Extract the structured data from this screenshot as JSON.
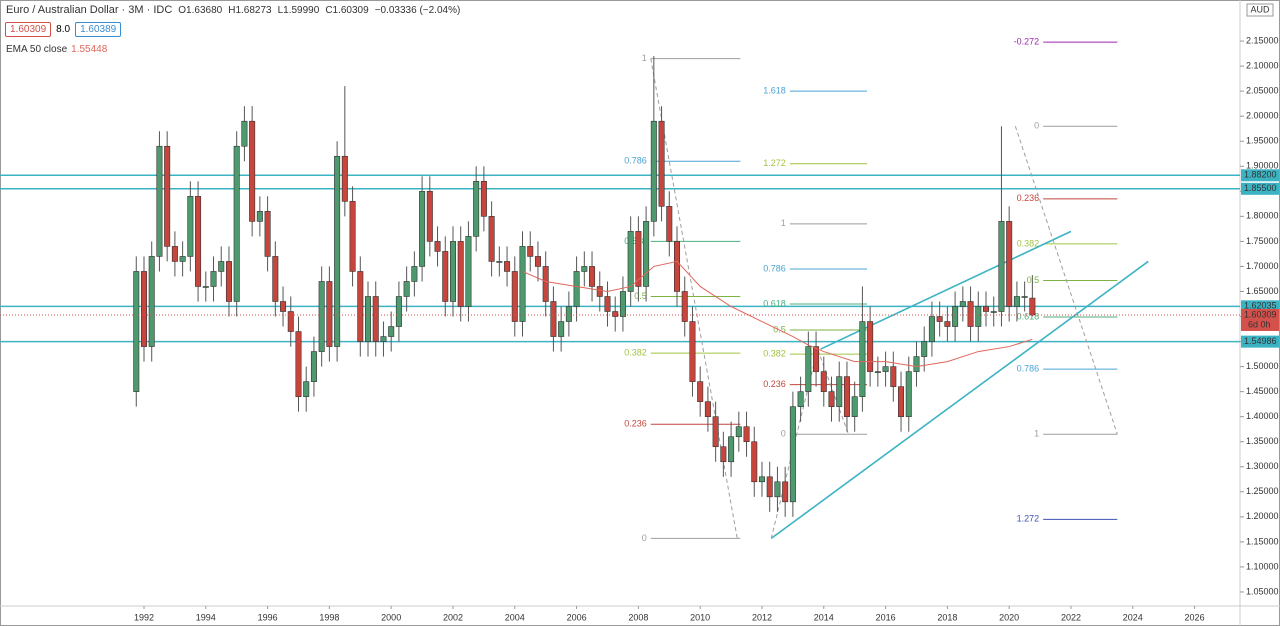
{
  "chart_data": {
    "type": "candlestick",
    "title": "Euro / Australian Dollar · 3M · IDC",
    "ohlc_text": [
      "O1.63680",
      "H1.68273",
      "L1.59990",
      "C1.60309",
      "−0.03336 (−2.04%)"
    ],
    "badges": [
      "1.60309",
      "8.0",
      "1.60389"
    ],
    "indicator": {
      "name": "EMA 50 close",
      "value_label": "1.55448",
      "color": "#e0665a",
      "x": [
        2004.25,
        2005,
        2006,
        2007,
        2007.75,
        2008.5,
        2009.25,
        2010,
        2011,
        2012,
        2013,
        2013.5,
        2014,
        2015,
        2016,
        2017,
        2018,
        2019,
        2020,
        2020.75
      ],
      "values": [
        1.69,
        1.67,
        1.66,
        1.65,
        1.66,
        1.7,
        1.71,
        1.66,
        1.62,
        1.59,
        1.56,
        1.543,
        1.53,
        1.51,
        1.51,
        1.5,
        1.51,
        1.53,
        1.54,
        1.55448
      ]
    },
    "currency": "AUD",
    "up_color": "#4e9a6e",
    "down_color": "#c6463d",
    "xlim": [
      1987.34,
      2027.47
    ],
    "ylim": [
      1.022,
      2.232
    ],
    "xticks": [
      1992,
      1994,
      1996,
      1998,
      2000,
      2002,
      2004,
      2006,
      2008,
      2010,
      2012,
      2014,
      2016,
      2018,
      2020,
      2022,
      2024,
      2026
    ],
    "yticks": [
      {
        "value": 1.05,
        "label": "1.05000"
      },
      {
        "value": 1.1,
        "label": "1.10000"
      },
      {
        "value": 1.15,
        "label": "1.15000"
      },
      {
        "value": 1.2,
        "label": "1.20000"
      },
      {
        "value": 1.25,
        "label": "1.25000"
      },
      {
        "value": 1.3,
        "label": "1.30000"
      },
      {
        "value": 1.35,
        "label": "1.35000"
      },
      {
        "value": 1.4,
        "label": "1.40000"
      },
      {
        "value": 1.45,
        "label": "1.45000"
      },
      {
        "value": 1.5,
        "label": "1.50000"
      },
      {
        "value": 1.55,
        "label": "1.55000"
      },
      {
        "value": 1.6,
        "label": "1.60000"
      },
      {
        "value": 1.65,
        "label": "1.65000"
      },
      {
        "value": 1.7,
        "label": "1.70000"
      },
      {
        "value": 1.75,
        "label": "1.75000"
      },
      {
        "value": 1.8,
        "label": "1.80000"
      },
      {
        "value": 1.85,
        "label": "1.85000"
      },
      {
        "value": 1.9,
        "label": "1.90000"
      },
      {
        "value": 1.95,
        "label": "1.95000"
      },
      {
        "value": 2.0,
        "label": "2.00000"
      },
      {
        "value": 2.05,
        "label": "2.05000"
      },
      {
        "value": 2.1,
        "label": "2.10000"
      },
      {
        "value": 2.15,
        "label": "2.15000"
      }
    ],
    "x": [
      1991.75,
      1992,
      1992.25,
      1992.5,
      1992.75,
      1993,
      1993.25,
      1993.5,
      1993.75,
      1994,
      1994.25,
      1994.5,
      1994.75,
      1995,
      1995.25,
      1995.5,
      1995.75,
      1996,
      1996.25,
      1996.5,
      1996.75,
      1997,
      1997.25,
      1997.5,
      1997.75,
      1998,
      1998.25,
      1998.5,
      1998.75,
      1999,
      1999.25,
      1999.5,
      1999.75,
      2000,
      2000.25,
      2000.5,
      2000.75,
      2001,
      2001.25,
      2001.5,
      2001.75,
      2002,
      2002.25,
      2002.5,
      2002.75,
      2003,
      2003.25,
      2003.5,
      2003.75,
      2004,
      2004.25,
      2004.5,
      2004.75,
      2005,
      2005.25,
      2005.5,
      2005.75,
      2006,
      2006.25,
      2006.5,
      2006.75,
      2007,
      2007.25,
      2007.5,
      2007.75,
      2008,
      2008.25,
      2008.5,
      2008.75,
      2009,
      2009.25,
      2009.5,
      2009.75,
      2010,
      2010.25,
      2010.5,
      2010.75,
      2011,
      2011.25,
      2011.5,
      2011.75,
      2012,
      2012.25,
      2012.5,
      2012.75,
      2013,
      2013.25,
      2013.5,
      2013.75,
      2014,
      2014.25,
      2014.5,
      2014.75,
      2015,
      2015.25,
      2015.5,
      2015.75,
      2016,
      2016.25,
      2016.5,
      2016.75,
      2017,
      2017.25,
      2017.5,
      2017.75,
      2018,
      2018.25,
      2018.5,
      2018.75,
      2019,
      2019.25,
      2019.5,
      2019.75,
      2020,
      2020.25,
      2020.5,
      2020.75
    ],
    "series": [
      {
        "open": [
          1.45,
          1.69,
          1.54,
          1.72,
          1.94,
          1.74,
          1.71,
          1.72,
          1.84,
          1.66,
          1.66,
          1.69,
          1.71,
          1.63,
          1.94,
          1.99,
          1.79,
          1.81,
          1.72,
          1.63,
          1.61,
          1.57,
          1.44,
          1.47,
          1.53,
          1.67,
          1.54,
          1.92,
          1.83,
          1.69,
          1.55,
          1.64,
          1.55,
          1.56,
          1.58,
          1.64,
          1.67,
          1.7,
          1.85,
          1.75,
          1.73,
          1.63,
          1.75,
          1.62,
          1.76,
          1.87,
          1.8,
          1.71,
          1.71,
          1.69,
          1.59,
          1.74,
          1.72,
          1.7,
          1.63,
          1.56,
          1.59,
          1.62,
          1.69,
          1.7,
          1.66,
          1.64,
          1.61,
          1.6,
          1.65,
          1.77,
          1.66,
          1.79,
          1.99,
          1.82,
          1.75,
          1.65,
          1.59,
          1.47,
          1.43,
          1.4,
          1.34,
          1.31,
          1.36,
          1.38,
          1.35,
          1.27,
          1.28,
          1.24,
          1.27,
          1.23,
          1.42,
          1.45,
          1.54,
          1.49,
          1.45,
          1.42,
          1.48,
          1.4,
          1.44,
          1.59,
          1.49,
          1.49,
          1.5,
          1.46,
          1.4,
          1.49,
          1.52,
          1.55,
          1.6,
          1.59,
          1.58,
          1.62,
          1.63,
          1.58,
          1.62,
          1.61,
          1.61,
          1.79,
          1.62,
          1.64,
          1.6368
        ],
        "high": [
          1.72,
          1.72,
          1.75,
          1.97,
          1.97,
          1.77,
          1.75,
          1.87,
          1.87,
          1.69,
          1.72,
          1.74,
          1.74,
          1.97,
          2.02,
          2.02,
          1.84,
          1.84,
          1.75,
          1.66,
          1.64,
          1.6,
          1.5,
          1.56,
          1.7,
          1.7,
          1.95,
          2.06,
          1.86,
          1.72,
          1.67,
          1.67,
          1.59,
          1.61,
          1.67,
          1.7,
          1.73,
          1.88,
          1.88,
          1.78,
          1.76,
          1.78,
          1.78,
          1.79,
          1.9,
          1.9,
          1.83,
          1.74,
          1.74,
          1.72,
          1.77,
          1.77,
          1.75,
          1.73,
          1.66,
          1.62,
          1.65,
          1.72,
          1.73,
          1.73,
          1.69,
          1.67,
          1.64,
          1.68,
          1.8,
          1.8,
          1.82,
          2.12,
          2.02,
          1.85,
          1.78,
          1.68,
          1.62,
          1.5,
          1.46,
          1.43,
          1.37,
          1.39,
          1.41,
          1.41,
          1.38,
          1.31,
          1.31,
          1.3,
          1.3,
          1.45,
          1.48,
          1.57,
          1.57,
          1.52,
          1.48,
          1.51,
          1.51,
          1.47,
          1.66,
          1.62,
          1.52,
          1.53,
          1.53,
          1.49,
          1.52,
          1.55,
          1.58,
          1.63,
          1.63,
          1.62,
          1.65,
          1.66,
          1.66,
          1.65,
          1.65,
          1.64,
          1.98,
          1.82,
          1.67,
          1.67,
          1.68273
        ],
        "low": [
          1.42,
          1.51,
          1.51,
          1.69,
          1.71,
          1.68,
          1.68,
          1.69,
          1.63,
          1.63,
          1.63,
          1.66,
          1.6,
          1.6,
          1.91,
          1.76,
          1.76,
          1.69,
          1.6,
          1.58,
          1.54,
          1.41,
          1.41,
          1.44,
          1.5,
          1.51,
          1.51,
          1.8,
          1.66,
          1.52,
          1.52,
          1.52,
          1.52,
          1.53,
          1.55,
          1.61,
          1.64,
          1.67,
          1.72,
          1.7,
          1.6,
          1.6,
          1.59,
          1.59,
          1.73,
          1.77,
          1.68,
          1.68,
          1.66,
          1.56,
          1.56,
          1.69,
          1.67,
          1.6,
          1.53,
          1.53,
          1.56,
          1.59,
          1.66,
          1.63,
          1.61,
          1.58,
          1.57,
          1.57,
          1.62,
          1.63,
          1.63,
          1.76,
          1.79,
          1.72,
          1.62,
          1.56,
          1.44,
          1.4,
          1.37,
          1.31,
          1.28,
          1.28,
          1.33,
          1.32,
          1.24,
          1.24,
          1.21,
          1.21,
          1.2,
          1.2,
          1.39,
          1.42,
          1.46,
          1.42,
          1.39,
          1.39,
          1.37,
          1.37,
          1.41,
          1.46,
          1.46,
          1.46,
          1.43,
          1.37,
          1.37,
          1.46,
          1.49,
          1.52,
          1.56,
          1.55,
          1.55,
          1.59,
          1.55,
          1.55,
          1.58,
          1.58,
          1.58,
          1.59,
          1.59,
          1.61,
          1.5999
        ],
        "close": [
          1.69,
          1.54,
          1.72,
          1.94,
          1.74,
          1.71,
          1.72,
          1.84,
          1.66,
          1.66,
          1.69,
          1.71,
          1.63,
          1.94,
          1.99,
          1.79,
          1.81,
          1.72,
          1.63,
          1.61,
          1.57,
          1.44,
          1.47,
          1.53,
          1.67,
          1.54,
          1.92,
          1.83,
          1.69,
          1.55,
          1.64,
          1.55,
          1.56,
          1.58,
          1.64,
          1.67,
          1.7,
          1.85,
          1.75,
          1.73,
          1.63,
          1.75,
          1.62,
          1.76,
          1.87,
          1.8,
          1.71,
          1.71,
          1.69,
          1.59,
          1.74,
          1.72,
          1.7,
          1.63,
          1.56,
          1.59,
          1.62,
          1.69,
          1.7,
          1.66,
          1.64,
          1.61,
          1.6,
          1.65,
          1.77,
          1.66,
          1.79,
          1.99,
          1.82,
          1.75,
          1.65,
          1.59,
          1.47,
          1.43,
          1.4,
          1.34,
          1.31,
          1.36,
          1.38,
          1.35,
          1.27,
          1.28,
          1.24,
          1.27,
          1.23,
          1.42,
          1.45,
          1.54,
          1.49,
          1.45,
          1.42,
          1.48,
          1.4,
          1.44,
          1.59,
          1.49,
          1.49,
          1.5,
          1.46,
          1.4,
          1.49,
          1.52,
          1.55,
          1.6,
          1.59,
          1.58,
          1.62,
          1.63,
          1.58,
          1.62,
          1.61,
          1.61,
          1.79,
          1.62,
          1.64,
          1.64,
          1.60309
        ]
      }
    ],
    "levels": [
      {
        "value": 1.882,
        "label": "1.88200",
        "color": "#3bb3c3"
      },
      {
        "value": 1.855,
        "label": "1.85500",
        "color": "#3bb3c3"
      },
      {
        "value": 1.62035,
        "label": "1.62035",
        "color": "#3bb3c3"
      },
      {
        "value": 1.54986,
        "label": "1.54986",
        "color": "#3bb3c3"
      }
    ],
    "last_price": {
      "value": 1.60309,
      "label": "1.60309",
      "countdown": "6d 0h",
      "color": "#d3514a"
    },
    "fibs": [
      {
        "x": [
          2008.4,
          2011.3
        ],
        "levels": [
          {
            "label": "1",
            "value": 2.115,
            "color": "#9e9e9e"
          },
          {
            "label": "0.786",
            "value": 1.91,
            "color": "#4ba3d6"
          },
          {
            "label": "0.618",
            "value": 1.75,
            "color": "#4caf7d"
          },
          {
            "label": "0.5",
            "value": 1.64,
            "color": "#7cb342"
          },
          {
            "label": "0.382",
            "value": 1.527,
            "color": "#a0c440"
          },
          {
            "label": "0.236",
            "value": 1.385,
            "color": "#c0473d"
          },
          {
            "label": "0",
            "value": 1.157,
            "color": "#9e9e9e"
          }
        ]
      },
      {
        "x": [
          2012.9,
          2015.4
        ],
        "levels": [
          {
            "label": "1.618",
            "value": 2.05,
            "color": "#4ba3d6"
          },
          {
            "label": "1.272",
            "value": 1.905,
            "color": "#a0c440"
          },
          {
            "label": "1",
            "value": 1.785,
            "color": "#9e9e9e"
          },
          {
            "label": "0.786",
            "value": 1.695,
            "color": "#4ba3d6"
          },
          {
            "label": "0.618",
            "value": 1.625,
            "color": "#4caf7d"
          },
          {
            "label": "0.5",
            "value": 1.573,
            "color": "#7cb342"
          },
          {
            "label": "0.382",
            "value": 1.525,
            "color": "#a0c440"
          },
          {
            "label": "0.236",
            "value": 1.464,
            "color": "#c0473d"
          },
          {
            "label": "0",
            "value": 1.365,
            "color": "#9e9e9e"
          }
        ]
      },
      {
        "x": [
          2021.1,
          2023.5
        ],
        "levels": [
          {
            "label": "-0.272",
            "value": 2.148,
            "color": "#9c27b0"
          },
          {
            "label": "0",
            "value": 1.98,
            "color": "#9e9e9e"
          },
          {
            "label": "0.236",
            "value": 1.835,
            "color": "#c0473d"
          },
          {
            "label": "0.382",
            "value": 1.745,
            "color": "#a0c440"
          },
          {
            "label": "0.5",
            "value": 1.672,
            "color": "#7cb342"
          },
          {
            "label": "0.618",
            "value": 1.599,
            "color": "#4caf7d"
          },
          {
            "label": "0.786",
            "value": 1.495,
            "color": "#4ba3d6"
          },
          {
            "label": "1",
            "value": 1.365,
            "color": "#9e9e9e"
          },
          {
            "label": "1.272",
            "value": 1.195,
            "color": "#3f51b5"
          }
        ]
      }
    ],
    "lines": [
      {
        "x": [
          2012.3,
          2024.5
        ],
        "values": [
          1.157,
          1.71
        ],
        "color": "#3bb3c3",
        "dashed": false
      },
      {
        "x": [
          2013.9,
          2022
        ],
        "values": [
          1.535,
          1.77
        ],
        "color": "#3bb3c3",
        "dashed": false
      },
      {
        "x": [
          2008.4,
          2011.2
        ],
        "values": [
          2.115,
          1.157
        ],
        "color": "#9e9e9e",
        "dashed": true
      },
      {
        "x": [
          2012.3,
          2013.8,
          2014.8
        ],
        "values": [
          1.157,
          1.535,
          1.365
        ],
        "color": "#9e9e9e",
        "dashed": true
      },
      {
        "x": [
          2020.2,
          2023.5
        ],
        "values": [
          1.98,
          1.365
        ],
        "color": "#9e9e9e",
        "dashed": true
      }
    ]
  }
}
